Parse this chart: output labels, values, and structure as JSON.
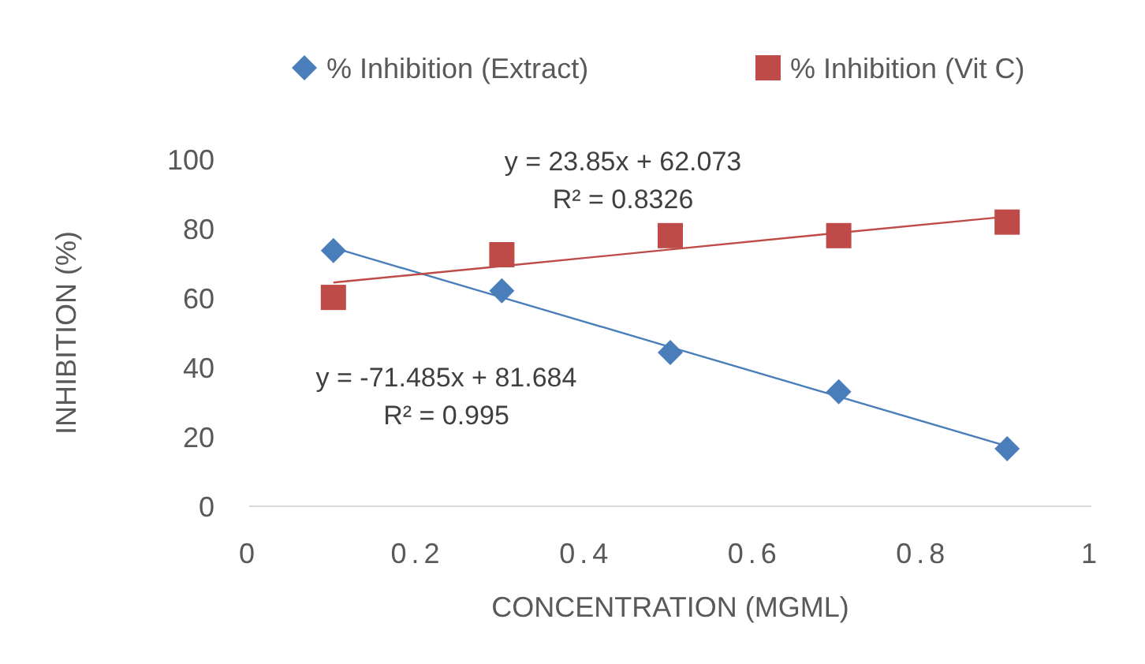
{
  "chart_data": {
    "type": "scatter",
    "xlabel": "CONCENTRATION (MGML)",
    "ylabel": "INHIBITION (%)",
    "xlim": [
      0,
      1
    ],
    "xticks": [
      0,
      0.2,
      0.4,
      0.6,
      0.8,
      1
    ],
    "ylim": [
      0,
      100
    ],
    "yticks": [
      0,
      20,
      40,
      60,
      80,
      100
    ],
    "x": [
      0.1,
      0.3,
      0.5,
      0.7,
      0.9
    ],
    "grid": false,
    "legend": "top",
    "series": [
      {
        "name": "% Inhibition (Extract)",
        "color": "#4a7ebb",
        "marker": "diamond",
        "values": [
          73.7,
          62.1,
          44.3,
          33.0,
          16.6
        ]
      },
      {
        "name": "% Inhibition (Vit C)",
        "color": "#be4b48",
        "marker": "square",
        "values": [
          60.2,
          72.5,
          78.0,
          78.0,
          81.9
        ]
      },
      {
        "type": "line",
        "color": "#4a7ebb",
        "marker": "none",
        "values": [
          74.5,
          60.2,
          45.9,
          31.6,
          17.3
        ]
      },
      {
        "type": "line",
        "color": "#be4b48",
        "marker": "none",
        "values": [
          64.5,
          69.2,
          74.0,
          78.8,
          83.5
        ]
      }
    ],
    "annotations": [
      "y = 23.85x + 62.073",
      "R² = 0.8326",
      "y = -71.485x + 81.684",
      "R² = 0.995"
    ]
  }
}
